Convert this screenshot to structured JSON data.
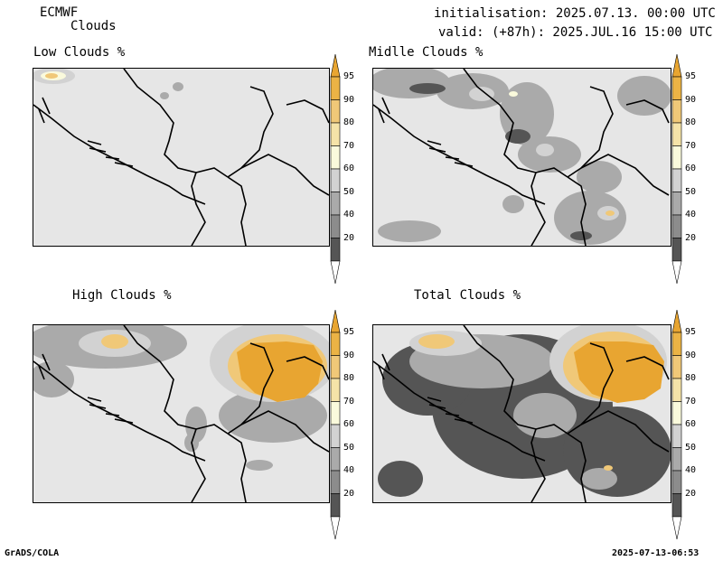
{
  "header": {
    "model": "ECMWF",
    "product": "Clouds",
    "init": "initialisation: 2025.07.13. 00:00 UTC",
    "valid": "valid: (+87h): 2025.JUL.16 15:00 UTC"
  },
  "panels": [
    {
      "id": "low",
      "title": "Low Clouds %"
    },
    {
      "id": "middle",
      "title": "Midlle Clouds %"
    },
    {
      "id": "high",
      "title": "High Clouds %"
    },
    {
      "id": "total",
      "title": "Total Clouds %"
    }
  ],
  "colorbar": {
    "ticks": [
      "95",
      "90",
      "80",
      "70",
      "60",
      "50",
      "40",
      "20"
    ],
    "colors": {
      "top": "#e8a531",
      "95": "#ebb345",
      "90": "#f0c878",
      "80": "#f5e3a8",
      "70": "#fafadc",
      "60": "#d2d2d2",
      "50": "#aaaaaa",
      "40": "#8c8c8c",
      "20": "#555555",
      "bottom": "#ffffff"
    }
  },
  "footer": {
    "left": "GrADS/COLA",
    "right": "2025-07-13-06:53"
  }
}
